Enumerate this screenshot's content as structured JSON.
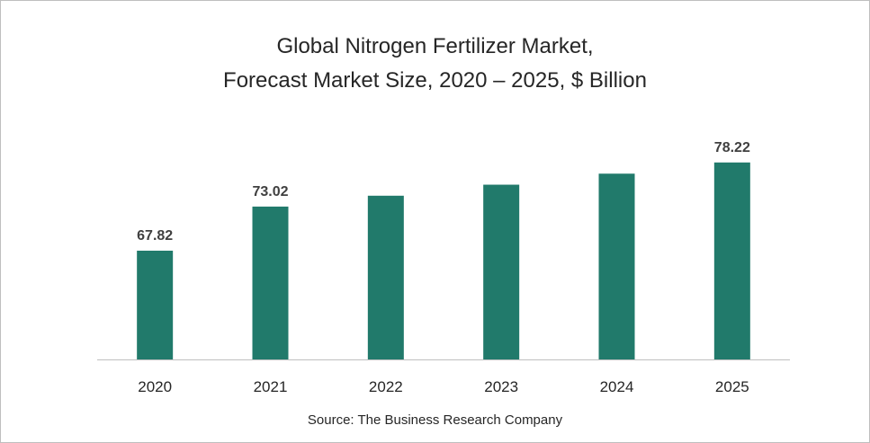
{
  "chart_data": {
    "type": "bar",
    "title_lines": [
      "Global Nitrogen Fertilizer Market,",
      "Forecast Market Size, 2020 – 2025, $ Billion"
    ],
    "categories": [
      "2020",
      "2021",
      "2022",
      "2023",
      "2024",
      "2025"
    ],
    "values": [
      67.82,
      73.02,
      74.3,
      75.6,
      76.9,
      78.22
    ],
    "data_labels": [
      "67.82",
      "73.02",
      "",
      "",
      "",
      "78.22"
    ],
    "xlabel": "",
    "ylabel": "",
    "ylim": [
      55,
      80
    ],
    "grid": false,
    "legend": "none",
    "bar_color": "#217a6b",
    "axis_color": "#bfbfbf"
  },
  "source": "Source: The Business Research Company"
}
